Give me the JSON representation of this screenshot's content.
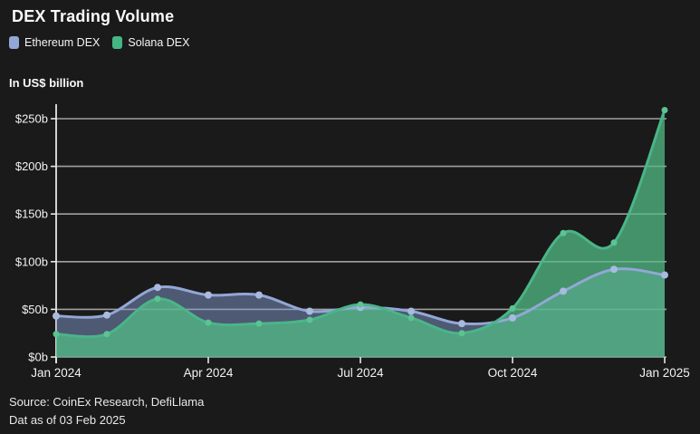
{
  "page": {
    "background": "#1a1a1a",
    "text_color": "#f5f5f5"
  },
  "header": {
    "title": "DEX Trading Volume"
  },
  "legend": {
    "items": [
      {
        "label": "Ethereum DEX",
        "color": "#93a7d6"
      },
      {
        "label": "Solana DEX",
        "color": "#46b585"
      }
    ]
  },
  "unit_label": "In US$ billion",
  "footer": {
    "source_line": "Source: CoinEx Research, DefiLlama",
    "date_line": "Dat as of 03 Feb 2025"
  },
  "chart_data": {
    "type": "area",
    "title": "DEX Trading Volume",
    "unit": "In US$ billion",
    "x": [
      "Jan 2024",
      "Feb 2024",
      "Mar 2024",
      "Apr 2024",
      "May 2024",
      "Jun 2024",
      "Jul 2024",
      "Aug 2024",
      "Sep 2024",
      "Oct 2024",
      "Nov 2024",
      "Dec 2024",
      "Jan 2025"
    ],
    "series": [
      {
        "name": "Ethereum DEX",
        "line_color": "#93a7d6",
        "marker_color": "#a9badf",
        "fill_color": "rgba(130,152,204,0.5)",
        "values": [
          43,
          44,
          73,
          65,
          65,
          48,
          52,
          48,
          35,
          41,
          69,
          92,
          86
        ]
      },
      {
        "name": "Solana DEX",
        "line_color": "#4ab588",
        "marker_color": "#5ac493",
        "fill_color": "rgba(82,187,133,0.75)",
        "values": [
          24,
          24,
          61,
          36,
          35,
          39,
          55,
          41,
          25,
          51,
          130,
          120,
          259
        ]
      }
    ],
    "ylim": [
      0,
      265
    ],
    "yticks": [
      {
        "value": 0,
        "label": "$0b"
      },
      {
        "value": 50,
        "label": "$50b"
      },
      {
        "value": 100,
        "label": "$100b"
      },
      {
        "value": 150,
        "label": "$150b"
      },
      {
        "value": 200,
        "label": "$200b"
      },
      {
        "value": 250,
        "label": "$250b"
      }
    ],
    "xticks_shown": [
      {
        "index": 0,
        "label": "Jan 2024"
      },
      {
        "index": 3,
        "label": "Apr 2024"
      },
      {
        "index": 6,
        "label": "Jul 2024"
      },
      {
        "index": 9,
        "label": "Oct 2024"
      },
      {
        "index": 12,
        "label": "Jan 2025"
      }
    ],
    "grid": true,
    "legend_position": "top-left",
    "grid_color": "#a0a0a0",
    "axis_color": "#e6e6e6",
    "tick_text_color": "#f2f2f2"
  }
}
